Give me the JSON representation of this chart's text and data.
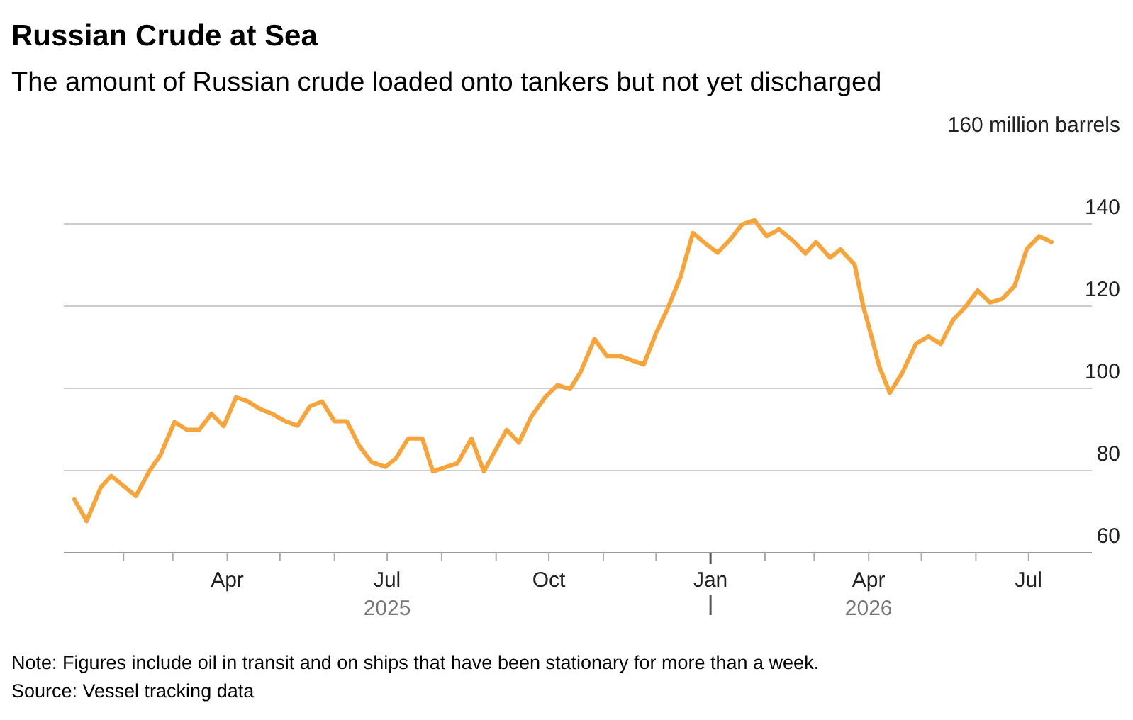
{
  "chart_data": {
    "type": "line",
    "title": "Russian Crude at Sea",
    "subtitle": "The amount of Russian crude loaded onto tankers but not yet discharged",
    "x": [
      "2025-01-04",
      "2025-01-11",
      "2025-01-19",
      "2025-01-25",
      "2025-02-02",
      "2025-02-08",
      "2025-02-16",
      "2025-02-22",
      "2025-03-02",
      "2025-03-09",
      "2025-03-16",
      "2025-03-23",
      "2025-03-30",
      "2025-04-06",
      "2025-04-12",
      "2025-04-20",
      "2025-04-27",
      "2025-05-04",
      "2025-05-11",
      "2025-05-18",
      "2025-05-25",
      "2025-06-01",
      "2025-06-08",
      "2025-06-15",
      "2025-06-22",
      "2025-06-30",
      "2025-07-06",
      "2025-07-13",
      "2025-07-21",
      "2025-07-27",
      "2025-08-10",
      "2025-08-18",
      "2025-08-25",
      "2025-09-07",
      "2025-09-14",
      "2025-09-21",
      "2025-09-29",
      "2025-10-06",
      "2025-10-13",
      "2025-10-19",
      "2025-10-27",
      "2025-11-03",
      "2025-11-10",
      "2025-11-24",
      "2025-12-01",
      "2025-12-08",
      "2025-12-15",
      "2025-12-22",
      "2025-12-29",
      "2026-01-05",
      "2026-01-12",
      "2026-01-19",
      "2026-01-26",
      "2026-02-02",
      "2026-02-09",
      "2026-02-17",
      "2026-02-24",
      "2026-03-02",
      "2026-03-10",
      "2026-03-16",
      "2026-03-24",
      "2026-03-29",
      "2026-04-01",
      "2026-04-07",
      "2026-04-13",
      "2026-04-20",
      "2026-04-28",
      "2026-05-05",
      "2026-05-12",
      "2026-05-19",
      "2026-05-26",
      "2026-06-02",
      "2026-06-09",
      "2026-06-16",
      "2026-06-23",
      "2026-06-30",
      "2026-07-07",
      "2026-07-14"
    ],
    "series": [
      {
        "color": "#f7a53b",
        "values": [
          73,
          67.7,
          75.9,
          78.7,
          75.9,
          73.8,
          80.1,
          83.8,
          91.8,
          89.9,
          89.9,
          93.8,
          90.8,
          97.8,
          97,
          94.9,
          93.7,
          92,
          90.9,
          95.6,
          96.8,
          92,
          92,
          86.1,
          82.1,
          80.9,
          83,
          87.8,
          87.8,
          79.8,
          81.8,
          87.8,
          79.8,
          89.9,
          86.8,
          93.1,
          97.9,
          100.8,
          99.8,
          103.9,
          112,
          107.9,
          107.9,
          105.8,
          113.4,
          119.8,
          127.2,
          137.8,
          135.3,
          133,
          136.1,
          139.9,
          140.9,
          137,
          138.7,
          135.9,
          132.8,
          135.6,
          131.8,
          133.8,
          130.1,
          119.8,
          115.2,
          105.4,
          98.9,
          103.7,
          110.9,
          112.6,
          110.8,
          116.6,
          119.8,
          123.8,
          120.9,
          121.8,
          124.9,
          133.9,
          137,
          135.6
        ]
      }
    ],
    "xlim": [
      "2024-12-29",
      "2026-08-06"
    ],
    "xticks": [
      {
        "value": "2025-02-01",
        "label": null
      },
      {
        "value": "2025-03-01",
        "label": null
      },
      {
        "value": "2025-04-01",
        "label": "Apr"
      },
      {
        "value": "2025-05-01",
        "label": null
      },
      {
        "value": "2025-06-01",
        "label": null
      },
      {
        "value": "2025-07-01",
        "label": "Jul\n2025"
      },
      {
        "value": "2025-08-01",
        "label": null
      },
      {
        "value": "2025-09-01",
        "label": null
      },
      {
        "value": "2025-10-01",
        "label": "Oct"
      },
      {
        "value": "2025-11-01",
        "label": null
      },
      {
        "value": "2025-12-01",
        "label": null
      },
      {
        "value": "2026-01-01",
        "label": "Jan"
      },
      {
        "value": "2026-02-01",
        "label": null
      },
      {
        "value": "2026-03-01",
        "label": null
      },
      {
        "value": "2026-04-01",
        "label": "Apr\n2026"
      },
      {
        "value": "2026-05-01",
        "label": null
      },
      {
        "value": "2026-06-01",
        "label": null
      },
      {
        "value": "2026-07-01",
        "label": "Jul"
      }
    ],
    "ylim": [
      60,
      160
    ],
    "yticks": [
      60,
      80,
      100,
      120,
      140,
      {
        "value": 160,
        "label": "160 million barrels"
      }
    ],
    "grid": "y",
    "marker": "none",
    "line_style": "solid",
    "annotations": [
      "Note: Figures include oil in transit and on ships that have been stationary for more than a week.",
      "Source: Vessel tracking data"
    ]
  }
}
